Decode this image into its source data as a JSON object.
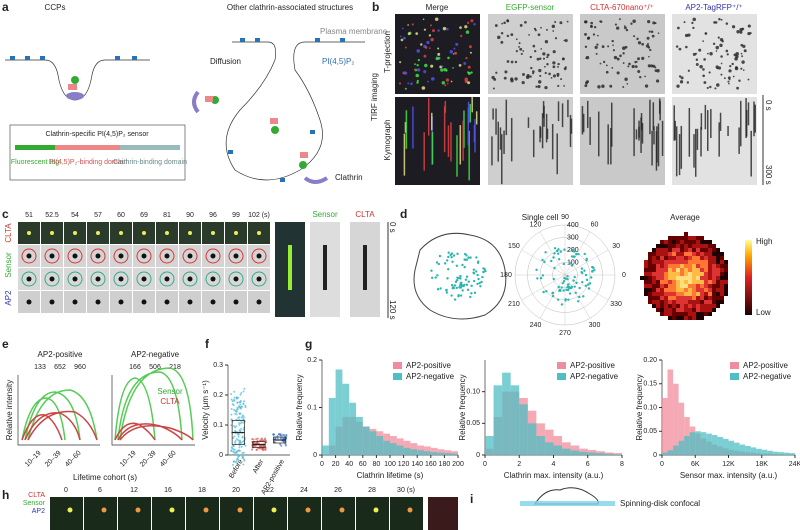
{
  "panels": {
    "a": {
      "label": "a",
      "left_title": "CCPs",
      "right_title": "Other clathrin-associated structures",
      "membrane": "Plasma membrane",
      "lipid": "PI(4,5)P₂",
      "diffusion": "Diffusion",
      "clathrin": "Clathrin",
      "sensor_title": "Clathrin-specific PI(4,5)P₂ sensor",
      "domains": [
        "Fluorescent tag",
        "PI(4,5)P₂-binding domain",
        "Clathrin-binding domain"
      ]
    },
    "b": {
      "label": "b",
      "channels": [
        "Merge",
        "EGFP-sensor",
        "CLTA-670nano⁺/⁺",
        "AP2-TagRFP⁺/⁺"
      ],
      "method": "TIRF imaging",
      "rows": [
        "T-projection",
        "Kymograph"
      ],
      "time": [
        "0 s",
        "300 s"
      ]
    },
    "c": {
      "label": "c",
      "times": [
        "51",
        "52.5",
        "54",
        "57",
        "60",
        "69",
        "81",
        "90",
        "96",
        "99",
        "102 (s)"
      ],
      "rows": [
        "CLTA",
        "Sensor",
        "AP2"
      ],
      "kymo": [
        "Sensor",
        "CLTA"
      ],
      "time": [
        "0 s",
        "120 s"
      ]
    },
    "d": {
      "label": "d",
      "title": "Single cell",
      "angles": [
        "90",
        "60",
        "30",
        "0",
        "330",
        "300",
        "270",
        "240",
        "210",
        "180",
        "150",
        "120"
      ],
      "radii": [
        "100",
        "200",
        "300",
        "400"
      ],
      "average": "Average",
      "scale": [
        "High",
        "Low"
      ]
    },
    "e": {
      "label": "e",
      "groups": [
        {
          "name": "AP2-positive",
          "counts": [
            "133",
            "652",
            "960"
          ]
        },
        {
          "name": "AP2-negative",
          "counts": [
            "166",
            "506",
            "218"
          ]
        }
      ],
      "series": [
        "Sensor",
        "CLTA"
      ],
      "ylabel": "Relative intensity",
      "xlabel": "Lifetime cohort (s)",
      "cohorts": [
        "10–19",
        "20–39",
        "40–60"
      ]
    },
    "f": {
      "label": "f"
    },
    "g": {
      "label": "g"
    },
    "h": {
      "label": "h",
      "rows": [
        "CLTA",
        "Sensor",
        "AP2"
      ],
      "times": [
        "0",
        "6",
        "12",
        "16",
        "18",
        "20",
        "22",
        "24",
        "26",
        "28",
        "30 (s)"
      ]
    },
    "i": {
      "label": "i",
      "method": "Spinning-disk confocal"
    }
  },
  "chart_data": [
    {
      "type": "box",
      "ylabel": "Velocity (μm s⁻¹)",
      "categories": [
        "Before",
        "After",
        "AP2-positive"
      ],
      "values": [
        0.075,
        0.035,
        0.05
      ],
      "colors": [
        "#4fb8d8",
        "#d9534f",
        "#3a6fc4"
      ],
      "ylim": [
        0,
        0.3
      ],
      "yticks": [
        0,
        0.1,
        0.2,
        0.3
      ]
    },
    {
      "type": "histogram",
      "ylabel": "Relative frequency",
      "xlabel": "Clathrin lifetime (s)",
      "legend": "upper right",
      "bins": [
        0,
        10,
        20,
        30,
        40,
        50,
        60,
        70,
        80,
        90,
        100,
        110,
        120,
        130,
        140,
        150,
        160,
        170,
        180,
        190,
        200
      ],
      "series": [
        {
          "name": "AP2-positive",
          "color": "#f08c9c",
          "values": [
            0.0,
            0.02,
            0.06,
            0.08,
            0.08,
            0.07,
            0.06,
            0.055,
            0.05,
            0.045,
            0.04,
            0.035,
            0.03,
            0.025,
            0.02,
            0.018,
            0.015,
            0.012,
            0.01,
            0.008
          ]
        },
        {
          "name": "AP2-negative",
          "color": "#4fbfc4",
          "values": [
            0.02,
            0.12,
            0.18,
            0.15,
            0.11,
            0.08,
            0.06,
            0.05,
            0.04,
            0.03,
            0.025,
            0.02,
            0.015,
            0.012,
            0.01,
            0.008,
            0.006,
            0.005,
            0.004,
            0.003
          ]
        }
      ],
      "xlim": [
        0,
        200
      ],
      "xticks": [
        0,
        20,
        40,
        60,
        80,
        100,
        120,
        140,
        160,
        180,
        200
      ],
      "ylim": [
        0,
        0.2
      ],
      "yticks": [
        0,
        0.1,
        0.2
      ]
    },
    {
      "type": "histogram",
      "ylabel": "Relative frequency",
      "xlabel": "Clathrin max. intensity (a.u.)",
      "legend": "upper right",
      "bins": [
        0,
        0.5,
        1,
        1.5,
        2,
        2.5,
        3,
        3.5,
        4,
        4.5,
        5,
        5.5,
        6,
        6.5,
        7,
        7.5,
        8
      ],
      "series": [
        {
          "name": "AP2-positive",
          "color": "#f08c9c",
          "values": [
            0.01,
            0.06,
            0.1,
            0.1,
            0.09,
            0.07,
            0.05,
            0.04,
            0.03,
            0.02,
            0.015,
            0.01,
            0.008,
            0.006,
            0.004,
            0.003
          ]
        },
        {
          "name": "AP2-negative",
          "color": "#4fbfc4",
          "values": [
            0.03,
            0.11,
            0.13,
            0.11,
            0.08,
            0.05,
            0.03,
            0.02,
            0.015,
            0.01,
            0.007,
            0.005,
            0.004,
            0.003,
            0.002,
            0.001
          ]
        }
      ],
      "xlim": [
        0,
        8
      ],
      "xticks": [
        0,
        2,
        4,
        6,
        8
      ],
      "ylim": [
        0,
        0.15
      ],
      "yticks": [
        0,
        0.05,
        {
          "value": 0.1,
          "label": "0.10"
        }
      ]
    },
    {
      "type": "histogram",
      "ylabel": "Relative frequency",
      "xlabel": "Sensor max. intensity (a.u.)",
      "legend": "upper right",
      "bins": [
        0,
        1000,
        2000,
        3000,
        4000,
        5000,
        6000,
        7000,
        8000,
        9000,
        10000,
        11000,
        12000,
        13000,
        14000,
        15000,
        16000,
        17000,
        18000,
        19000,
        20000,
        21000,
        22000,
        23000,
        24000
      ],
      "series": [
        {
          "name": "AP2-positive",
          "color": "#f08c9c",
          "values": [
            0.12,
            0.18,
            0.15,
            0.11,
            0.08,
            0.06,
            0.045,
            0.035,
            0.028,
            0.022,
            0.018,
            0.014,
            0.011,
            0.009,
            0.007,
            0.006,
            0.005,
            0.004,
            0.003,
            0.003,
            0.002,
            0.002,
            0.001,
            0.001
          ]
        },
        {
          "name": "AP2-negative",
          "color": "#4fbfc4",
          "values": [
            0.005,
            0.01,
            0.02,
            0.03,
            0.04,
            0.048,
            0.05,
            0.048,
            0.045,
            0.042,
            0.038,
            0.034,
            0.03,
            0.026,
            0.022,
            0.019,
            0.016,
            0.013,
            0.011,
            0.009,
            0.007,
            0.006,
            0.005,
            0.004
          ]
        }
      ],
      "xlim": [
        0,
        24000
      ],
      "xticks": [
        0,
        {
          "value": 6000,
          "label": "6K"
        },
        {
          "value": 12000,
          "label": "12K"
        },
        {
          "value": 18000,
          "label": "18K"
        },
        {
          "value": 24000,
          "label": "24K"
        }
      ],
      "ylim": [
        0,
        0.2
      ],
      "yticks": [
        0,
        0.05,
        {
          "value": 0.1,
          "label": "0.10"
        },
        0.15,
        {
          "value": 0.2,
          "label": "0.20"
        }
      ]
    }
  ]
}
